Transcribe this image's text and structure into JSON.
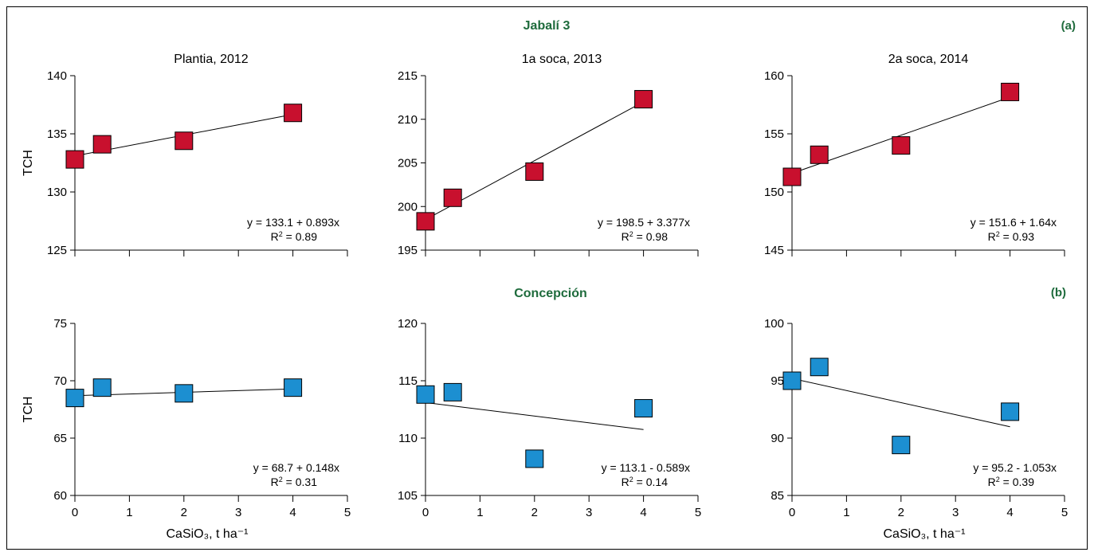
{
  "figure": {
    "groups": [
      {
        "title": "Jabalí 3",
        "letter": "(a)"
      },
      {
        "title": "Concepción",
        "letter": "(b)"
      }
    ]
  },
  "chart_data": [
    {
      "type": "scatter",
      "group": "Jabalí 3",
      "title": "Plantia, 2012",
      "xlabel": "",
      "ylabel": "TCH",
      "ylim": [
        125,
        140
      ],
      "yticks": [
        125,
        130,
        135,
        140
      ],
      "xticks": [],
      "xlim": [
        0,
        5
      ],
      "points": [
        {
          "x": 0,
          "y": 132.8
        },
        {
          "x": 0.5,
          "y": 134.1
        },
        {
          "x": 2,
          "y": 134.4
        },
        {
          "x": 4,
          "y": 136.8
        }
      ],
      "fit": {
        "intercept": 133.1,
        "slope": 0.893
      },
      "equation": "y = 133.1 + 0.893x",
      "r2_label": "R",
      "r2_value": " = 0.89",
      "color": "#c8102e"
    },
    {
      "type": "scatter",
      "group": "Jabalí 3",
      "title": "1a soca, 2013",
      "xlabel": "",
      "ylabel": "",
      "ylim": [
        195,
        215
      ],
      "yticks": [
        195,
        200,
        205,
        210,
        215
      ],
      "xticks": [],
      "xlim": [
        0,
        5
      ],
      "points": [
        {
          "x": 0,
          "y": 198.3
        },
        {
          "x": 0.5,
          "y": 201.0
        },
        {
          "x": 2,
          "y": 204.0
        },
        {
          "x": 4,
          "y": 212.3
        }
      ],
      "fit": {
        "intercept": 198.5,
        "slope": 3.377
      },
      "equation": "y = 198.5 + 3.377x",
      "r2_label": "R",
      "r2_value": " = 0.98",
      "color": "#c8102e"
    },
    {
      "type": "scatter",
      "group": "Jabalí 3",
      "title": "2a soca, 2014",
      "xlabel": "",
      "ylabel": "",
      "ylim": [
        145,
        160
      ],
      "yticks": [
        145,
        150,
        155,
        160
      ],
      "xticks": [],
      "xlim": [
        0,
        5
      ],
      "points": [
        {
          "x": 0,
          "y": 151.3
        },
        {
          "x": 0.5,
          "y": 153.2
        },
        {
          "x": 2,
          "y": 154.0
        },
        {
          "x": 4,
          "y": 158.6
        }
      ],
      "fit": {
        "intercept": 151.6,
        "slope": 1.64
      },
      "equation": "y = 151.6 + 1.64x",
      "r2_label": "R",
      "r2_value": " = 0.93",
      "color": "#c8102e"
    },
    {
      "type": "scatter",
      "group": "Concepción",
      "title": "",
      "xlabel": "CaSiO₃, t ha⁻¹",
      "ylabel": "TCH",
      "ylim": [
        60,
        75
      ],
      "yticks": [
        60,
        65,
        70,
        75
      ],
      "xticks": [
        0,
        1,
        2,
        3,
        4,
        5
      ],
      "xlim": [
        0,
        5
      ],
      "points": [
        {
          "x": 0,
          "y": 68.5
        },
        {
          "x": 0.5,
          "y": 69.4
        },
        {
          "x": 2,
          "y": 68.9
        },
        {
          "x": 4,
          "y": 69.4
        }
      ],
      "fit": {
        "intercept": 68.7,
        "slope": 0.148
      },
      "equation": "y = 68.7 + 0.148x",
      "r2_label": "R",
      "r2_value": " = 0.31",
      "color": "#1c8fd1"
    },
    {
      "type": "scatter",
      "group": "Concepción",
      "title": "",
      "xlabel": "",
      "ylabel": "",
      "ylim": [
        105,
        120
      ],
      "yticks": [
        105,
        110,
        115,
        120
      ],
      "xticks": [
        0,
        1,
        2,
        3,
        4,
        5
      ],
      "xlim": [
        0,
        5
      ],
      "points": [
        {
          "x": 0,
          "y": 113.8
        },
        {
          "x": 0.5,
          "y": 114.0
        },
        {
          "x": 2,
          "y": 108.2
        },
        {
          "x": 4,
          "y": 112.6
        }
      ],
      "fit": {
        "intercept": 113.1,
        "slope": -0.589
      },
      "equation": "y = 113.1 - 0.589x",
      "r2_label": "R",
      "r2_value": " = 0.14",
      "color": "#1c8fd1"
    },
    {
      "type": "scatter",
      "group": "Concepción",
      "title": "",
      "xlabel": "CaSiO₃, t ha⁻¹",
      "ylabel": "",
      "ylim": [
        85,
        100
      ],
      "yticks": [
        85,
        90,
        95,
        100
      ],
      "xticks": [
        0,
        1,
        2,
        3,
        4,
        5
      ],
      "xlim": [
        0,
        5
      ],
      "points": [
        {
          "x": 0,
          "y": 95.0
        },
        {
          "x": 0.5,
          "y": 96.2
        },
        {
          "x": 2,
          "y": 89.4
        },
        {
          "x": 4,
          "y": 92.3
        }
      ],
      "fit": {
        "intercept": 95.2,
        "slope": -1.053
      },
      "equation": "y = 95.2 - 1.053x",
      "r2_label": "R",
      "r2_value": " = 0.39",
      "color": "#1c8fd1"
    }
  ]
}
